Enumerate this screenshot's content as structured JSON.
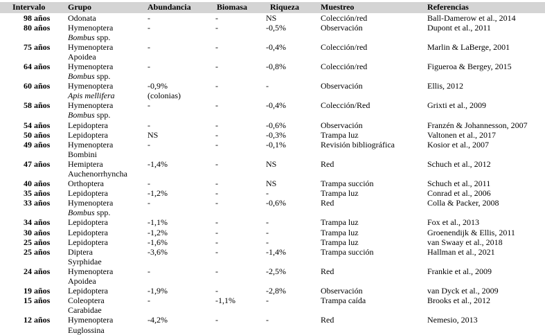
{
  "style": {
    "header_bg": "#d4d4d4",
    "page_bg": "#ffffff",
    "text_color": "#000000"
  },
  "header": {
    "columns": [
      {
        "key": "intervalo",
        "label": "Intervalo"
      },
      {
        "key": "grupo",
        "label": "Grupo"
      },
      {
        "key": "abundancia",
        "label": "Abundancia"
      },
      {
        "key": "biomasa",
        "label": "Biomasa"
      },
      {
        "key": "riqueza",
        "label": "Riqueza"
      },
      {
        "key": "muestreo",
        "label": "Muestreo"
      },
      {
        "key": "referencias",
        "label": "Referencias"
      }
    ]
  },
  "rows": [
    {
      "intervalo": "98 años",
      "grupo1": "Odonata",
      "grupo2_italic": "",
      "grupo2_roman": "",
      "abundancia": "-",
      "abundancia2": "",
      "biomasa": "-",
      "riqueza": "NS",
      "muestreo": "Colección/red",
      "referencias": "Ball-Damerow et al., 2014"
    },
    {
      "intervalo": "80 años",
      "grupo1": "Hymenoptera",
      "grupo2_italic": "Bombus",
      "grupo2_roman": " spp.",
      "abundancia": "-",
      "abundancia2": "",
      "biomasa": "-",
      "riqueza": "-0,5%",
      "muestreo": "Observación",
      "referencias": "Dupont et al., 2011"
    },
    {
      "intervalo": "75 años",
      "grupo1": "Hymenoptera",
      "grupo2_italic": "",
      "grupo2_roman": "Apoidea",
      "abundancia": "-",
      "abundancia2": "",
      "biomasa": "-",
      "riqueza": "-0,4%",
      "muestreo": "Colección/red",
      "referencias": "Marlin & LaBerge, 2001"
    },
    {
      "intervalo": "64 años",
      "grupo1": "Hymenoptera",
      "grupo2_italic": "Bombus",
      "grupo2_roman": " spp.",
      "abundancia": "-",
      "abundancia2": "",
      "biomasa": "-",
      "riqueza": "-0,8%",
      "muestreo": "Colección/red",
      "referencias": "Figueroa & Bergey, 2015"
    },
    {
      "intervalo": "60 años",
      "grupo1": "Hymenoptera",
      "grupo2_italic": "Apis mellifera",
      "grupo2_roman": "",
      "abundancia": "-0,9%",
      "abundancia2": "(colonias)",
      "biomasa": "-",
      "riqueza": "-",
      "muestreo": "Observación",
      "referencias": "Ellis, 2012"
    },
    {
      "intervalo": "58 años",
      "grupo1": "Hymenoptera",
      "grupo2_italic": "Bombus",
      "grupo2_roman": " spp.",
      "abundancia": "-",
      "abundancia2": "",
      "biomasa": "-",
      "riqueza": "-0,4%",
      "muestreo": "Colección/Red",
      "referencias": "Grixti et al., 2009"
    },
    {
      "intervalo": "54 años",
      "grupo1": "Lepidoptera",
      "grupo2_italic": "",
      "grupo2_roman": "",
      "abundancia": "-",
      "abundancia2": "",
      "biomasa": "-",
      "riqueza": "-0,6%",
      "muestreo": "Observación",
      "referencias": "Franzén & Johannesson, 2007"
    },
    {
      "intervalo": "50 años",
      "grupo1": "Lepidoptera",
      "grupo2_italic": "",
      "grupo2_roman": "",
      "abundancia": "NS",
      "abundancia2": "",
      "biomasa": "-",
      "riqueza": "-0,3%",
      "muestreo": "Trampa luz",
      "referencias": "Valtonen et al., 2017"
    },
    {
      "intervalo": "49 años",
      "grupo1": "Hymenoptera",
      "grupo2_italic": "",
      "grupo2_roman": "Bombini",
      "abundancia": "-",
      "abundancia2": "",
      "biomasa": "-",
      "riqueza": "-0,1%",
      "muestreo": "Revisión bibliográfica",
      "referencias": "Kosior et al., 2007"
    },
    {
      "intervalo": "47 años",
      "grupo1": "Hemiptera",
      "grupo2_italic": "",
      "grupo2_roman": "Auchenorrhyncha",
      "abundancia": "-1,4%",
      "abundancia2": "",
      "biomasa": "-",
      "riqueza": "NS",
      "muestreo": "Red",
      "referencias": "Schuch et al., 2012"
    },
    {
      "intervalo": "40 años",
      "grupo1": "Orthoptera",
      "grupo2_italic": "",
      "grupo2_roman": "",
      "abundancia": "-",
      "abundancia2": "",
      "biomasa": "-",
      "riqueza": "NS",
      "muestreo": "Trampa succión",
      "referencias": "Schuch et al., 2011"
    },
    {
      "intervalo": "35 años",
      "grupo1": "Lepidoptera",
      "grupo2_italic": "",
      "grupo2_roman": "",
      "abundancia": "-1,2%",
      "abundancia2": "",
      "biomasa": "-",
      "riqueza": "-",
      "muestreo": "Trampa luz",
      "referencias": "Conrad et al., 2006"
    },
    {
      "intervalo": "33 años",
      "grupo1": "Hymenoptera",
      "grupo2_italic": "Bombus",
      "grupo2_roman": " spp.",
      "abundancia": "-",
      "abundancia2": "",
      "biomasa": "-",
      "riqueza": "-0,6%",
      "muestreo": "Red",
      "referencias": "Colla & Packer, 2008"
    },
    {
      "intervalo": "34 años",
      "grupo1": "Lepidoptera",
      "grupo2_italic": "",
      "grupo2_roman": "",
      "abundancia": "-1,1%",
      "abundancia2": "",
      "biomasa": "-",
      "riqueza": "-",
      "muestreo": "Trampa luz",
      "referencias": "Fox et al., 2013"
    },
    {
      "intervalo": "30 años",
      "grupo1": "Lepidoptera",
      "grupo2_italic": "",
      "grupo2_roman": "",
      "abundancia": "-1,2%",
      "abundancia2": "",
      "biomasa": "-",
      "riqueza": "-",
      "muestreo": "Trampa luz",
      "referencias": "Groenendijk & Ellis, 2011"
    },
    {
      "intervalo": "25 años",
      "grupo1": "Lepidoptera",
      "grupo2_italic": "",
      "grupo2_roman": "",
      "abundancia": "-1,6%",
      "abundancia2": "",
      "biomasa": "-",
      "riqueza": "-",
      "muestreo": "Trampa luz",
      "referencias": "van Swaay et al., 2018"
    },
    {
      "intervalo": "25 años",
      "grupo1": "Diptera",
      "grupo2_italic": "",
      "grupo2_roman": "Syrphidae",
      "abundancia": "-3,6%",
      "abundancia2": "",
      "biomasa": "-",
      "riqueza": "-1,4%",
      "muestreo": "Trampa succión",
      "referencias": "Hallman et al., 2021"
    },
    {
      "intervalo": "24 años",
      "grupo1": "Hymenoptera",
      "grupo2_italic": "",
      "grupo2_roman": "Apoidea",
      "abundancia": "-",
      "abundancia2": "",
      "biomasa": "-",
      "riqueza": "-2,5%",
      "muestreo": "Red",
      "referencias": "Frankie et al., 2009"
    },
    {
      "intervalo": "19 años",
      "grupo1": "Lepidoptera",
      "grupo2_italic": "",
      "grupo2_roman": "",
      "abundancia": "-1,9%",
      "abundancia2": "",
      "biomasa": "-",
      "riqueza": "-2,8%",
      "muestreo": "Observación",
      "referencias": "van Dyck et al., 2009"
    },
    {
      "intervalo": "15 años",
      "grupo1": "Coleoptera",
      "grupo2_italic": "",
      "grupo2_roman": "Carabidae",
      "abundancia": "-",
      "abundancia2": "",
      "biomasa": "-1,1%",
      "riqueza": "-",
      "muestreo": "Trampa caída",
      "referencias": "Brooks et al., 2012"
    },
    {
      "intervalo": "12 años",
      "grupo1": "Hymenoptera",
      "grupo2_italic": "",
      "grupo2_roman": "Euglossina",
      "abundancia": "-4,2%",
      "abundancia2": "",
      "biomasa": "-",
      "riqueza": "-",
      "muestreo": "Red",
      "referencias": "Nemesio, 2013"
    }
  ]
}
